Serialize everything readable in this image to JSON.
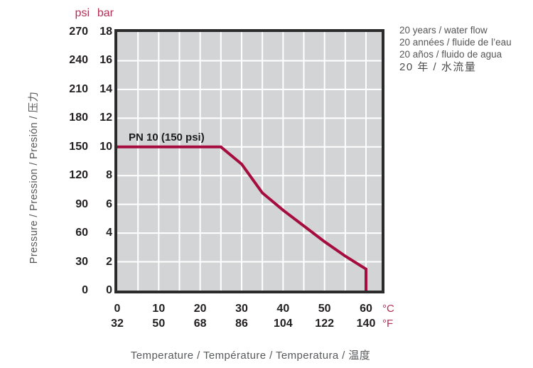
{
  "chart_data": {
    "type": "line",
    "xlabel": "Temperature / Température / Temperatura / 温度",
    "ylabel": "Pressure / Pression / Presión / 压力",
    "x_axis": {
      "unit_primary": "°C",
      "unit_secondary": "°F",
      "ticks_c": [
        "0",
        "10",
        "20",
        "30",
        "40",
        "50",
        "60"
      ],
      "ticks_f": [
        "32",
        "50",
        "68",
        "86",
        "104",
        "122",
        "140"
      ],
      "min_c": 0,
      "max_c": 60,
      "grid_step_c": 5
    },
    "y_axis": {
      "unit_primary": "psi",
      "unit_secondary": "bar",
      "ticks_psi": [
        "270",
        "240",
        "210",
        "180",
        "150",
        "120",
        "90",
        "60",
        "30",
        "0"
      ],
      "ticks_bar": [
        "18",
        "16",
        "14",
        "12",
        "10",
        "8",
        "6",
        "4",
        "2",
        "0"
      ],
      "min_bar": 0,
      "max_bar": 18,
      "grid_step_bar": 2
    },
    "annotation": "PN 10 (150 psi)",
    "legend": [
      "20 years / water flow",
      "20 années / fluide de l’eau",
      "20 años / fluido de agua",
      "20 年 / 水流量"
    ],
    "series": [
      {
        "name": "20 years / water flow",
        "points_c_bar": [
          [
            0,
            10
          ],
          [
            25,
            10
          ],
          [
            30,
            8.8
          ],
          [
            35,
            6.8
          ],
          [
            40,
            5.6
          ],
          [
            45,
            4.5
          ],
          [
            50,
            3.4
          ],
          [
            55,
            2.4
          ],
          [
            60,
            1.5
          ],
          [
            60,
            0
          ]
        ]
      }
    ],
    "colors": {
      "curve": "#a50d3f",
      "unit_text": "#b13055",
      "tick_text": "#232021",
      "axis_title_text": "#58595b",
      "legend_text": "#555557",
      "plot_background": "#d3d4d6",
      "gridline": "#ffffff",
      "plot_border": "#2b2b2b",
      "page_background": "#ffffff"
    }
  }
}
